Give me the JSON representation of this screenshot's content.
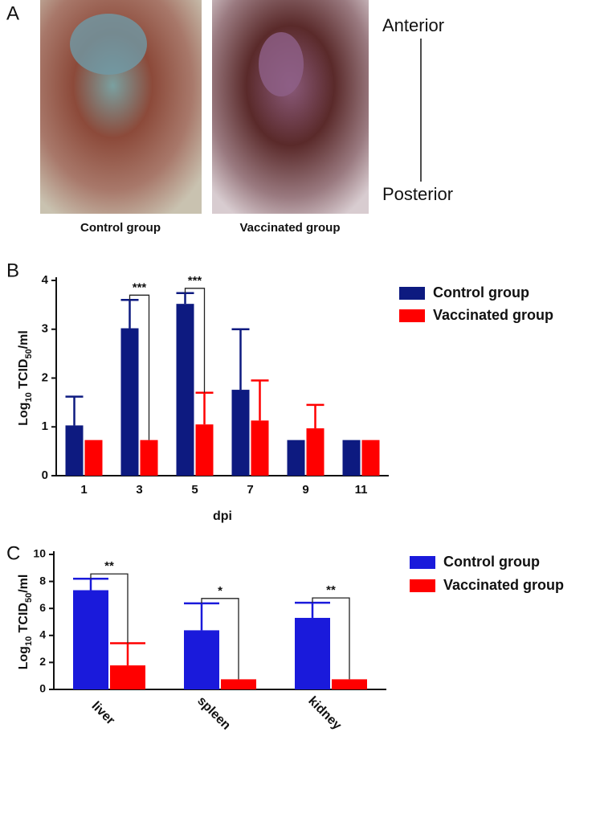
{
  "panel_a": {
    "label": "A",
    "captions": [
      "Control group",
      "Vaccinated group"
    ],
    "anterior": "Anterior",
    "posterior": "Posterior"
  },
  "chart_data": [
    {
      "panel_label": "B",
      "type": "bar",
      "ylabel": [
        "Log",
        "10",
        " TCID",
        "50",
        "/ml"
      ],
      "xlabel": "dpi",
      "categories": [
        "1",
        "3",
        "5",
        "7",
        "9",
        "11"
      ],
      "series": [
        {
          "name": "Control group",
          "color": "#0d1a80",
          "values": [
            1.03,
            3.02,
            3.52,
            1.76,
            0.73,
            0.73
          ],
          "errors": [
            0.59,
            0.58,
            0.22,
            1.24,
            null,
            null
          ]
        },
        {
          "name": "Vaccinated group",
          "color": "#ff0000",
          "values": [
            0.73,
            0.73,
            1.05,
            1.13,
            0.97,
            0.73
          ],
          "errors": [
            null,
            null,
            0.65,
            0.82,
            0.48,
            null
          ]
        }
      ],
      "ylim": [
        0,
        4
      ],
      "yticks": [
        0,
        1,
        2,
        3,
        4
      ],
      "annotations": [
        {
          "text": "***",
          "category": "3"
        },
        {
          "text": "***",
          "category": "5"
        }
      ],
      "legend": "right"
    },
    {
      "panel_label": "C",
      "type": "bar",
      "ylabel": [
        "Log",
        "10",
        " TCID",
        "50",
        "/ml"
      ],
      "categories": [
        "liver",
        "spleen",
        "kidney"
      ],
      "series": [
        {
          "name": "Control group",
          "color": "#1a1adb",
          "values": [
            7.35,
            4.38,
            5.3
          ],
          "errors": [
            0.85,
            2.0,
            1.12
          ]
        },
        {
          "name": "Vaccinated group",
          "color": "#ff0000",
          "values": [
            1.78,
            0.75,
            0.75
          ],
          "errors": [
            1.64,
            null,
            null
          ]
        }
      ],
      "ylim": [
        0,
        10
      ],
      "yticks": [
        0,
        2,
        4,
        6,
        8,
        10
      ],
      "annotations": [
        {
          "text": "**",
          "category": "liver"
        },
        {
          "text": "*",
          "category": "spleen"
        },
        {
          "text": "**",
          "category": "kidney"
        }
      ],
      "legend": "right"
    }
  ]
}
